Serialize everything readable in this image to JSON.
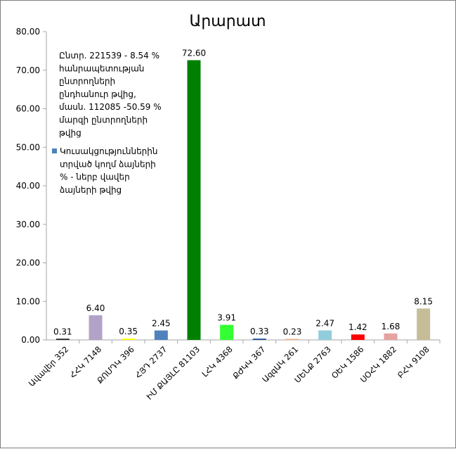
{
  "chart_data": {
    "type": "bar",
    "title": "Արարատ",
    "categories": [
      "Ավավեր 352",
      "ՀՀԿ 7148",
      "ՔՈՄԴԿ 396",
      "ՀՅԴ 2737",
      "ԻՄ ՔԱՅԼԸ 81103",
      "ԼՀԿ 4368",
      "ՔԺԿԿ 367",
      "ԱզգԱԿ 261",
      "ՄԵՆՔ 2763",
      "ՕԵԿ 1586",
      "ՍՕՀԿ 1882",
      "ԲՀԿ 9108"
    ],
    "values": [
      0.31,
      6.4,
      0.35,
      2.45,
      72.6,
      3.91,
      0.33,
      0.23,
      2.47,
      1.42,
      1.68,
      8.15
    ],
    "value_labels": [
      "0.31",
      "6.40",
      "0.35",
      "2.45",
      "72.60",
      "3.91",
      "0.33",
      "0.23",
      "2.47",
      "1.42",
      "1.68",
      "8.15"
    ],
    "colors": [
      "#1f1f1f",
      "#b3a2c7",
      "#ffff00",
      "#4f81bd",
      "#008000",
      "#33ff33",
      "#1f4e99",
      "#f4b183",
      "#92cddc",
      "#ff0000",
      "#e6a1a1",
      "#c4bd97"
    ],
    "ylim": [
      0,
      80
    ],
    "yticks": [
      "0.00",
      "10.00",
      "20.00",
      "30.00",
      "40.00",
      "50.00",
      "60.00",
      "70.00",
      "80.00"
    ],
    "ytick_values": [
      0,
      10,
      20,
      30,
      40,
      50,
      60,
      70,
      80
    ],
    "annotation": [
      "Ընտր. 221539 - 8.54 %",
      "հանրապետության",
      "ընտրողների",
      "ընդհանուր թվից,",
      "մասն. 112085 -50.59 %",
      "մարզի ընտրողների",
      "թվից"
    ],
    "legend": {
      "color": "#4f81bd",
      "lines": [
        "Կուսակցություններին",
        "տրված կողմ ձայների",
        "% - ներբ վավեր",
        "ձայների թվից"
      ],
      "placement": "top-left"
    },
    "grid": false
  }
}
